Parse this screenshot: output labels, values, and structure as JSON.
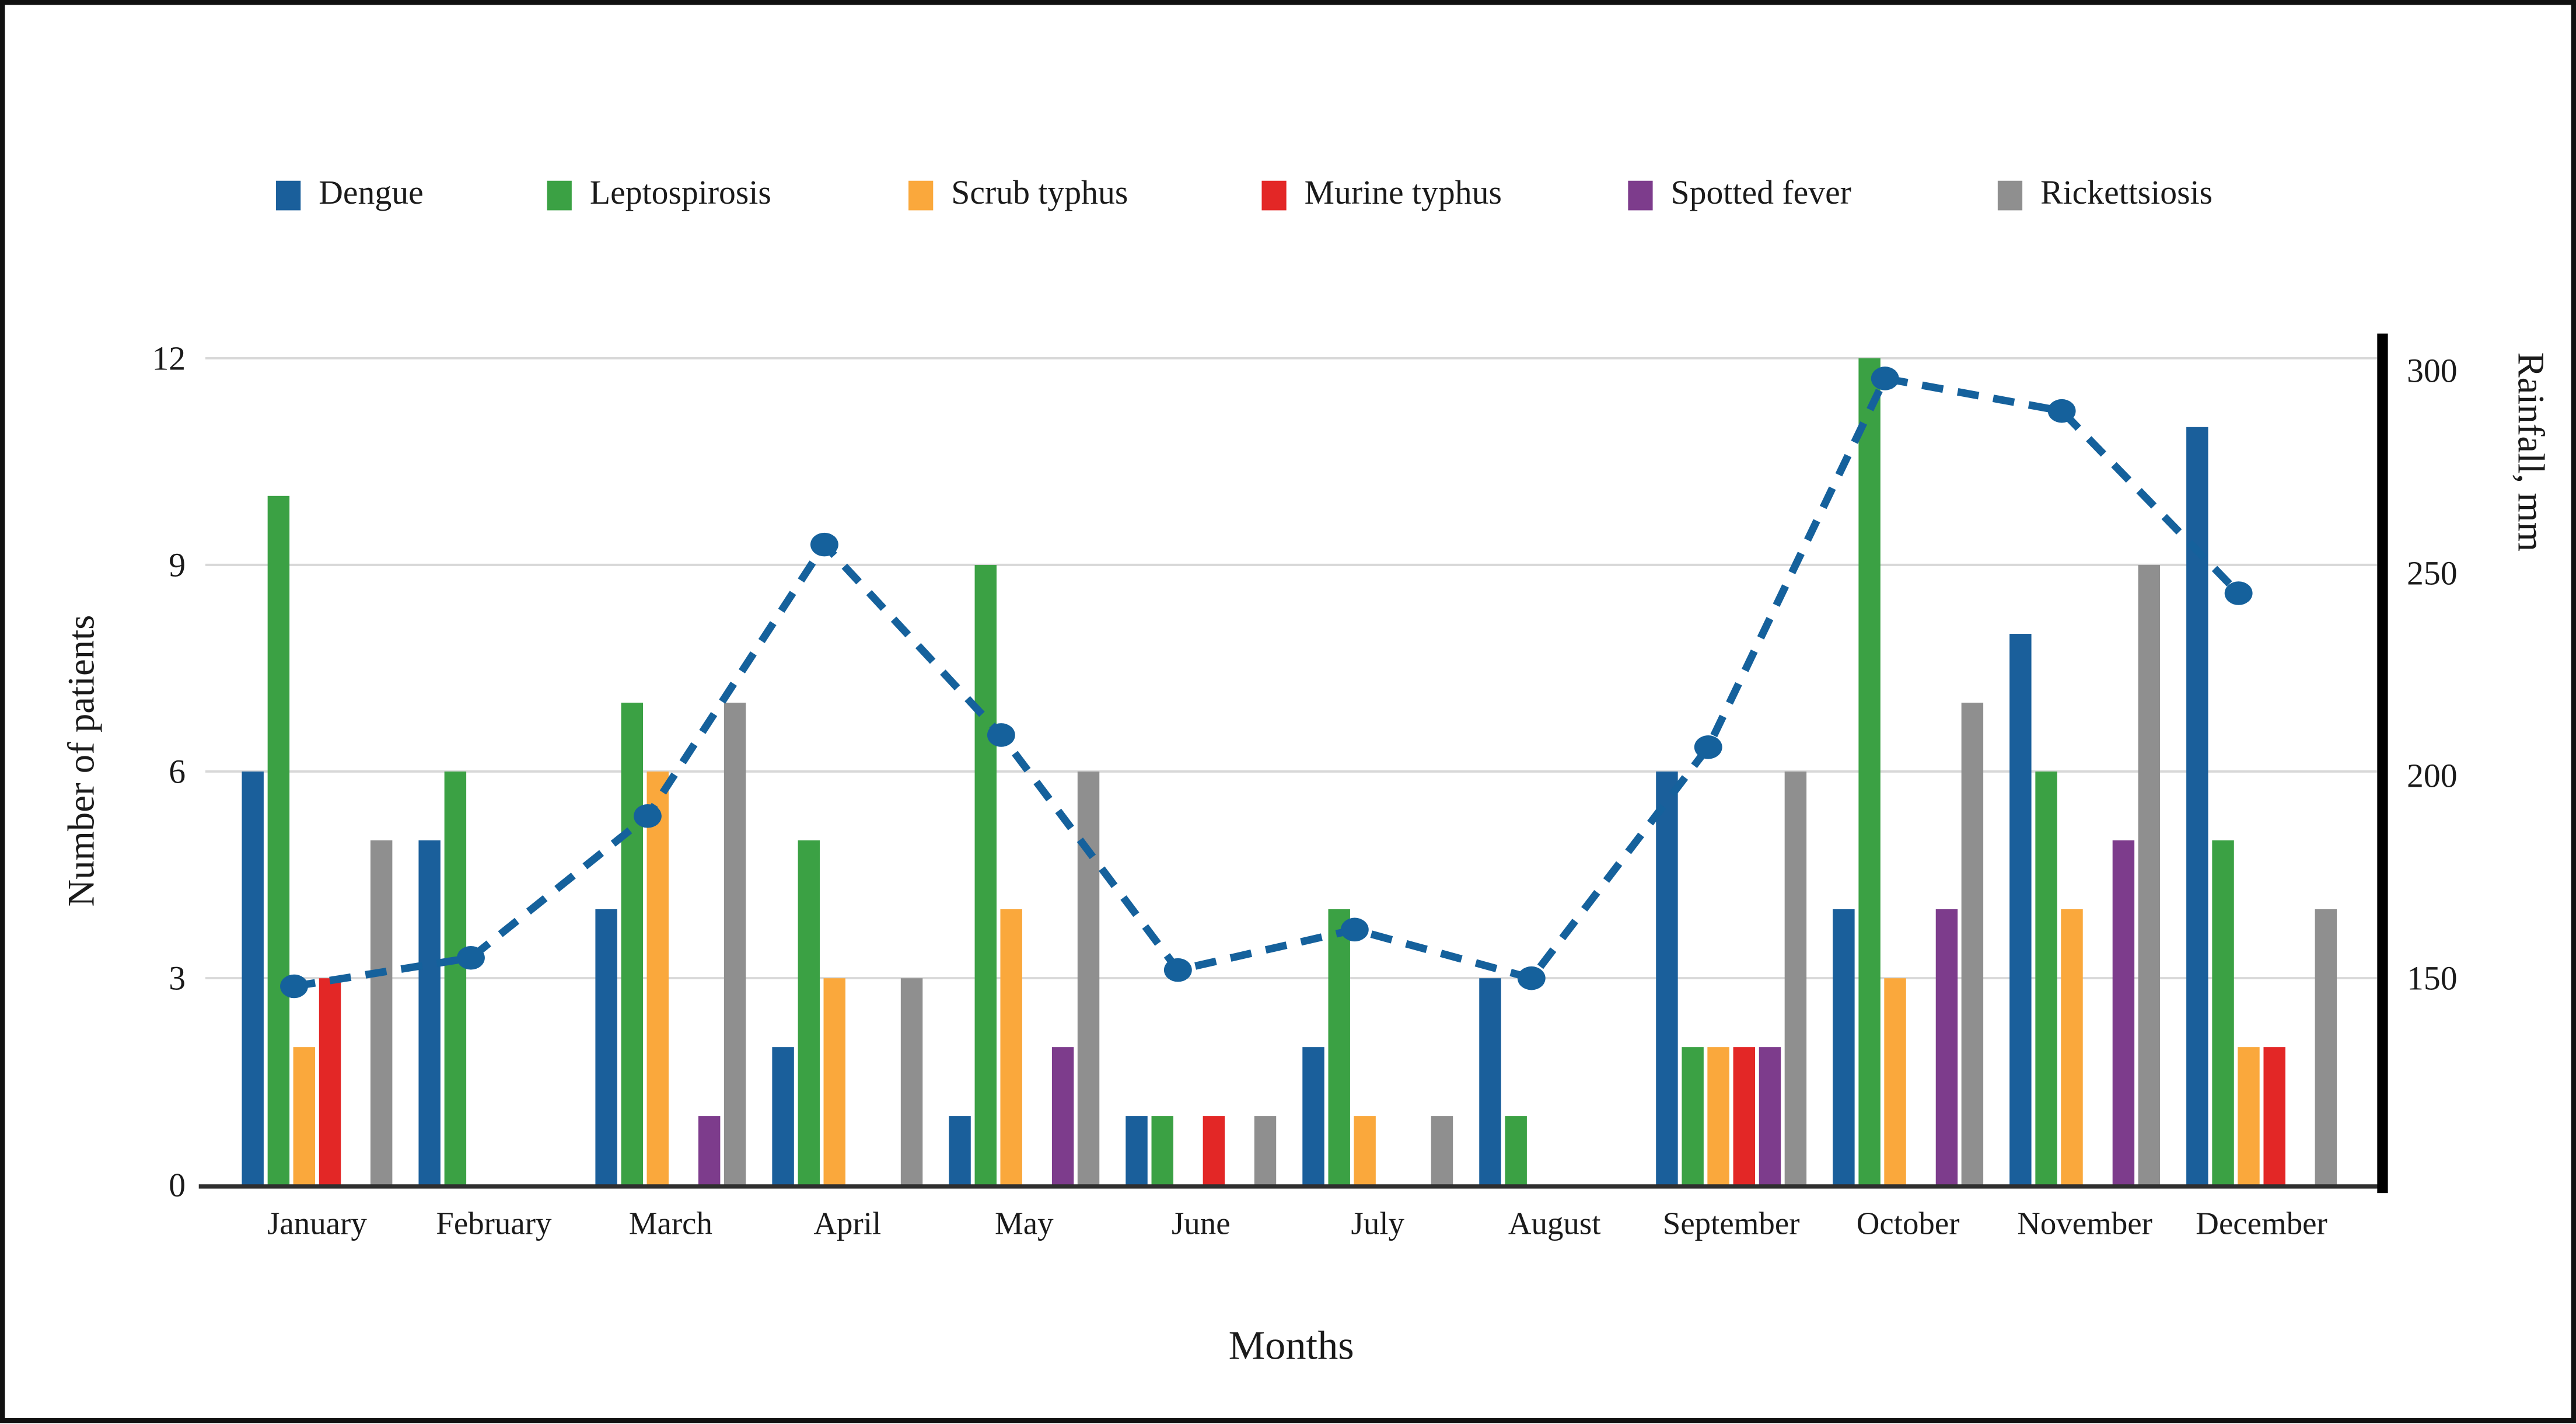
{
  "figure": {
    "background": "#ffffff",
    "border_color": "#111111",
    "gridline_color": "#d8d8d8",
    "bottom_spine_color": "#2f2f2f",
    "right_spine_color": "#000000"
  },
  "chart_data": {
    "type": "bar",
    "combo": "grouped bars (left axis) with dashed rainfall line on right axis",
    "title": "",
    "xlabel": "Months",
    "ylabel_left": "Number of patients",
    "ylabel_right": "Rainfall, mm",
    "categories": [
      "January",
      "February",
      "March",
      "April",
      "May",
      "June",
      "July",
      "August",
      "September",
      "October",
      "November",
      "December"
    ],
    "series": [
      {
        "name": "Dengue",
        "color": "#1A5F9B",
        "values": [
          6,
          5,
          4,
          2,
          1,
          1,
          2,
          3,
          6,
          4,
          8,
          11
        ]
      },
      {
        "name": "Leptospirosis",
        "color": "#3BA144",
        "values": [
          10,
          6,
          7,
          5,
          9,
          1,
          4,
          1,
          2,
          12,
          6,
          5
        ]
      },
      {
        "name": "Scrub typhus",
        "color": "#FAA83C",
        "values": [
          2,
          0,
          6,
          3,
          4,
          0,
          1,
          0,
          2,
          3,
          4,
          2
        ]
      },
      {
        "name": "Murine typhus",
        "color": "#E32726",
        "values": [
          3,
          0,
          0,
          0,
          0,
          1,
          0,
          0,
          2,
          0,
          0,
          2
        ]
      },
      {
        "name": "Spotted fever",
        "color": "#7D3C8C",
        "values": [
          0,
          0,
          1,
          0,
          2,
          0,
          0,
          0,
          2,
          4,
          5,
          0
        ]
      },
      {
        "name": "Rickettsiosis",
        "color": "#8F8F8F",
        "values": [
          5,
          0,
          7,
          3,
          6,
          1,
          1,
          0,
          6,
          7,
          9,
          4
        ]
      }
    ],
    "line_series": {
      "name": "Rainfall",
      "axis": "right",
      "style": "dashed-with-dots",
      "color": "#15619C",
      "values": [
        148,
        155,
        190,
        257,
        210,
        152,
        162,
        150,
        207,
        298,
        290,
        245
      ]
    },
    "y_left_range": [
      0,
      12
    ],
    "y_left_ticks": [
      0,
      3,
      6,
      9,
      12
    ],
    "y_right_ticks": [
      150,
      200,
      250,
      300
    ],
    "y_right_value_at_baseline": 99,
    "y_right_value_at_top": 303,
    "grid": "horizontal-light",
    "legend_position": "top"
  }
}
